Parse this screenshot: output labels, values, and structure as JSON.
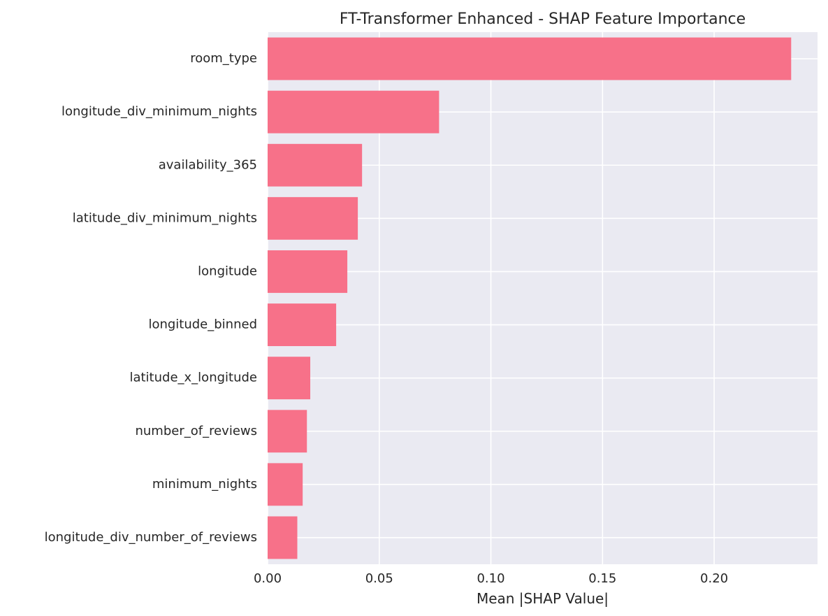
{
  "chart_data": {
    "type": "bar",
    "orientation": "horizontal",
    "title": "FT-Transformer Enhanced - SHAP Feature Importance",
    "xlabel": "Mean |SHAP Value|",
    "ylabel": "",
    "categories": [
      "room_type",
      "longitude_div_minimum_nights",
      "availability_365",
      "latitude_div_minimum_nights",
      "longitude",
      "longitude_binned",
      "latitude_x_longitude",
      "number_of_reviews",
      "minimum_nights",
      "longitude_div_number_of_reviews"
    ],
    "values": [
      0.2345,
      0.0768,
      0.0423,
      0.0404,
      0.0357,
      0.0307,
      0.0191,
      0.0176,
      0.0157,
      0.0133
    ],
    "xlim": [
      0,
      0.2463
    ],
    "xticks": [
      0.0,
      0.05,
      0.1,
      0.15,
      0.2
    ],
    "xtick_labels": [
      "0.00",
      "0.05",
      "0.10",
      "0.15",
      "0.20"
    ],
    "grid": true,
    "bar_color": "#f77189",
    "background_color": "#eaeaf2",
    "grid_color": "#ffffff",
    "text_color": "#262626"
  }
}
